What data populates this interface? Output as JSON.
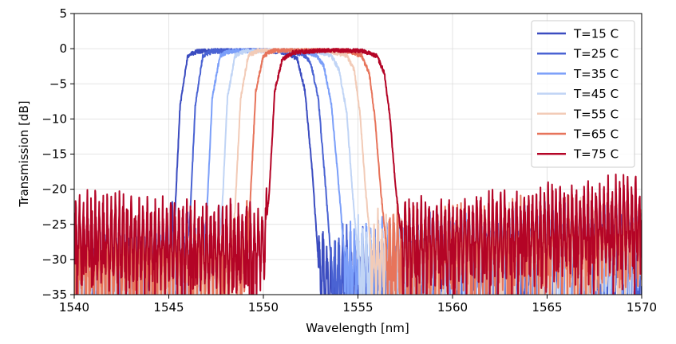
{
  "chart_data": {
    "type": "line",
    "title": "",
    "xlabel": "Wavelength [nm]",
    "ylabel": "Transmission [dB]",
    "xlim": [
      1540,
      1570
    ],
    "ylim": [
      -35,
      5
    ],
    "xticks": [
      1540,
      1545,
      1550,
      1555,
      1560,
      1565,
      1570
    ],
    "yticks": [
      5,
      0,
      -5,
      -10,
      -15,
      -20,
      -25,
      -30,
      -35
    ],
    "xtick_labels": [
      "1540",
      "1545",
      "1550",
      "1555",
      "1560",
      "1565",
      "1570"
    ],
    "ytick_labels": [
      "5",
      "0",
      "−5",
      "−10",
      "−15",
      "−20",
      "−25",
      "−30",
      "−35"
    ],
    "grid": true,
    "legend_position": "top-right",
    "series": [
      {
        "name": "T=15 C",
        "color": "#3b4cc0",
        "band_start": 1545.3,
        "band_end": 1552.9,
        "left_floor": -32,
        "right_floor": -30,
        "points": [
          [
            1540,
            -33
          ],
          [
            1545.0,
            -32
          ],
          [
            1545.3,
            -25
          ],
          [
            1545.6,
            -8
          ],
          [
            1546.0,
            -1
          ],
          [
            1546.5,
            -0.4
          ],
          [
            1548.0,
            -0.2
          ],
          [
            1550.0,
            -0.2
          ],
          [
            1551.3,
            -0.6
          ],
          [
            1551.8,
            -1.5
          ],
          [
            1552.2,
            -6
          ],
          [
            1552.6,
            -18
          ],
          [
            1552.9,
            -30
          ],
          [
            1553.5,
            -33
          ],
          [
            1570,
            -30
          ]
        ]
      },
      {
        "name": "T=25 C",
        "color": "#4a63d3",
        "band_start": 1546.0,
        "band_end": 1553.6,
        "left_floor": -32,
        "right_floor": -30,
        "points": [
          [
            1540,
            -33
          ],
          [
            1545.8,
            -32
          ],
          [
            1546.1,
            -25
          ],
          [
            1546.4,
            -8
          ],
          [
            1546.8,
            -1
          ],
          [
            1547.3,
            -0.4
          ],
          [
            1549.0,
            -0.2
          ],
          [
            1551.0,
            -0.3
          ],
          [
            1552.1,
            -0.8
          ],
          [
            1552.5,
            -2
          ],
          [
            1552.9,
            -7
          ],
          [
            1553.3,
            -20
          ],
          [
            1553.6,
            -31
          ],
          [
            1570,
            -30
          ]
        ]
      },
      {
        "name": "T=35 C",
        "color": "#7b9ff9",
        "band_start": 1546.9,
        "band_end": 1554.3,
        "left_floor": -31,
        "right_floor": -29,
        "points": [
          [
            1540,
            -32
          ],
          [
            1546.7,
            -31
          ],
          [
            1547.0,
            -24
          ],
          [
            1547.3,
            -7
          ],
          [
            1547.7,
            -1
          ],
          [
            1548.2,
            -0.4
          ],
          [
            1550.0,
            -0.2
          ],
          [
            1552.0,
            -0.3
          ],
          [
            1552.8,
            -0.9
          ],
          [
            1553.2,
            -2.5
          ],
          [
            1553.6,
            -8
          ],
          [
            1554.0,
            -20
          ],
          [
            1554.3,
            -30
          ],
          [
            1570,
            -28
          ]
        ]
      },
      {
        "name": "T=45 C",
        "color": "#c0d4f5",
        "band_start": 1547.7,
        "band_end": 1555.0,
        "left_floor": -31,
        "right_floor": -29,
        "points": [
          [
            1540,
            -32
          ],
          [
            1547.5,
            -31
          ],
          [
            1547.8,
            -24
          ],
          [
            1548.1,
            -7
          ],
          [
            1548.5,
            -1
          ],
          [
            1549.0,
            -0.4
          ],
          [
            1551.0,
            -0.2
          ],
          [
            1552.8,
            -0.3
          ],
          [
            1553.6,
            -1.0
          ],
          [
            1554.0,
            -3
          ],
          [
            1554.4,
            -9
          ],
          [
            1554.7,
            -20
          ],
          [
            1555.0,
            -30
          ],
          [
            1570,
            -28
          ]
        ]
      },
      {
        "name": "T=55 C",
        "color": "#f2cbb7",
        "band_start": 1548.4,
        "band_end": 1555.7,
        "left_floor": -30,
        "right_floor": -28,
        "points": [
          [
            1540,
            -31
          ],
          [
            1548.2,
            -30
          ],
          [
            1548.5,
            -23
          ],
          [
            1548.8,
            -7
          ],
          [
            1549.2,
            -1
          ],
          [
            1549.7,
            -0.3
          ],
          [
            1551.5,
            -0.1
          ],
          [
            1553.5,
            -0.3
          ],
          [
            1554.4,
            -1.0
          ],
          [
            1554.8,
            -3
          ],
          [
            1555.1,
            -9
          ],
          [
            1555.4,
            -20
          ],
          [
            1555.7,
            -29
          ],
          [
            1570,
            -27
          ]
        ]
      },
      {
        "name": "T=65 C",
        "color": "#e7745b",
        "band_start": 1549.2,
        "band_end": 1556.5,
        "left_floor": -29,
        "right_floor": -27,
        "points": [
          [
            1540,
            -30
          ],
          [
            1549.0,
            -29
          ],
          [
            1549.3,
            -22
          ],
          [
            1549.6,
            -6
          ],
          [
            1550.0,
            -1
          ],
          [
            1550.5,
            -0.3
          ],
          [
            1552.5,
            -0.1
          ],
          [
            1554.4,
            -0.3
          ],
          [
            1555.2,
            -1.0
          ],
          [
            1555.6,
            -3.5
          ],
          [
            1555.9,
            -10
          ],
          [
            1556.2,
            -20
          ],
          [
            1556.5,
            -28
          ],
          [
            1570,
            -26
          ]
        ]
      },
      {
        "name": "T=75 C",
        "color": "#b40426",
        "band_start": 1550.2,
        "band_end": 1557.3,
        "left_floor": -27,
        "right_floor": -26,
        "points": [
          [
            1540,
            -26
          ],
          [
            1550.0,
            -28
          ],
          [
            1550.3,
            -21
          ],
          [
            1550.6,
            -6
          ],
          [
            1551.0,
            -1.5
          ],
          [
            1551.6,
            -0.5
          ],
          [
            1553.5,
            -0.2
          ],
          [
            1555.2,
            -0.3
          ],
          [
            1556.0,
            -1.0
          ],
          [
            1556.4,
            -3.5
          ],
          [
            1556.7,
            -10
          ],
          [
            1557.0,
            -20
          ],
          [
            1557.3,
            -27
          ],
          [
            1570,
            -24
          ]
        ]
      }
    ]
  }
}
